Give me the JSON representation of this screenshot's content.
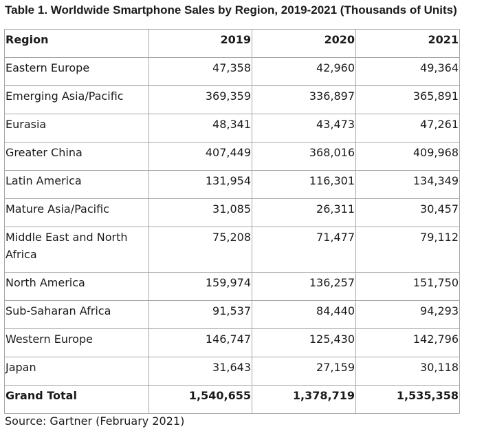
{
  "table": {
    "caption": "Table 1. Worldwide Smartphone Sales by Region, 2019-2021 (Thousands of Units)",
    "columns": [
      "Region",
      "2019",
      "2020",
      "2021"
    ],
    "rows": [
      [
        "Eastern Europe",
        "47,358",
        "42,960",
        "49,364"
      ],
      [
        "Emerging Asia/Pacific",
        "369,359",
        "336,897",
        "365,891"
      ],
      [
        "Eurasia",
        "48,341",
        "43,473",
        "47,261"
      ],
      [
        "Greater China",
        "407,449",
        "368,016",
        "409,968"
      ],
      [
        "Latin America",
        "131,954",
        "116,301",
        "134,349"
      ],
      [
        "Mature Asia/Pacific",
        "31,085",
        "26,311",
        "30,457"
      ],
      [
        "Middle East and North Africa",
        "75,208",
        "71,477",
        "79,112"
      ],
      [
        "North America",
        "159,974",
        "136,257",
        "151,750"
      ],
      [
        "Sub-Saharan Africa",
        "91,537",
        "84,440",
        "94,293"
      ],
      [
        "Western Europe",
        "146,747",
        "125,430",
        "142,796"
      ],
      [
        "Japan",
        "31,643",
        "27,159",
        "30,118"
      ]
    ],
    "total": [
      "Grand Total",
      "1,540,655",
      "1,378,719",
      "1,535,358"
    ],
    "source": "Source: Gartner (February 2021)"
  }
}
